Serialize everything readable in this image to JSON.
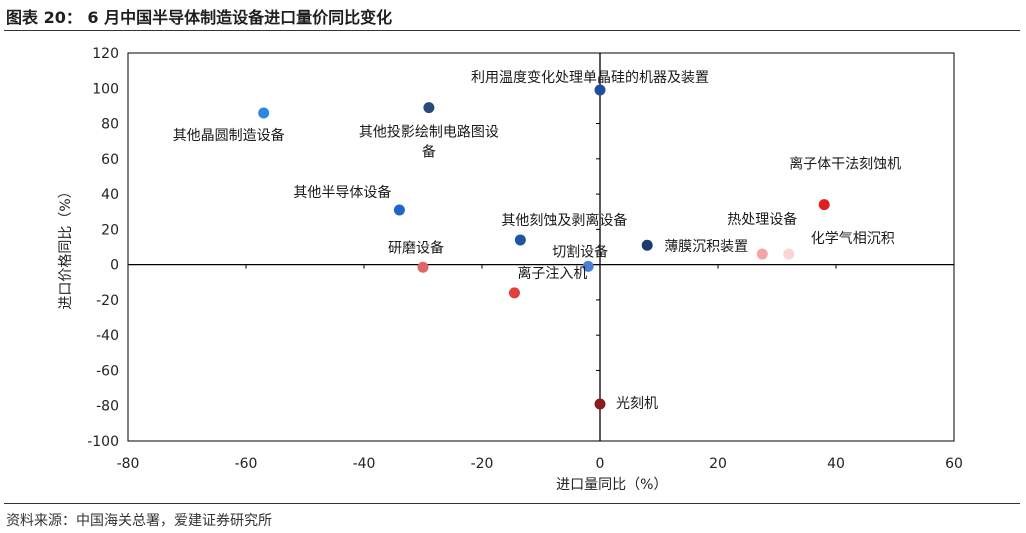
{
  "figure": {
    "title": "图表 20：  6 月中国半导体制造设备进口量价同比变化",
    "source": "资料来源：中国海关总署，爱建证券研究所"
  },
  "chart_data": {
    "type": "scatter",
    "xlabel": "进口量同比（%）",
    "ylabel": "进口价格同比（%）",
    "xlim": [
      -80,
      60
    ],
    "ylim": [
      -100,
      120
    ],
    "xticks": [
      -80,
      -60,
      -40,
      -20,
      0,
      20,
      40,
      60
    ],
    "yticks": [
      -100,
      -80,
      -60,
      -40,
      -20,
      0,
      20,
      40,
      60,
      80,
      100,
      120
    ],
    "grid": false,
    "points": [
      {
        "name": "利用温度变化处理单晶硅的机器及装置",
        "x": 0,
        "y": 99,
        "color": "#1f4e9c"
      },
      {
        "name": "其他晶圆制造设备",
        "x": -57,
        "y": 86,
        "color": "#2e86e0"
      },
      {
        "name": "其他投影绘制电路图设备",
        "x": -29,
        "y": 89,
        "color": "#274a7a"
      },
      {
        "name": "其他半导体设备",
        "x": -34,
        "y": 31,
        "color": "#1f66c9"
      },
      {
        "name": "其他刻蚀及剥离设备",
        "x": -13.5,
        "y": 14,
        "color": "#1f56a0"
      },
      {
        "name": "研磨设备",
        "x": -30,
        "y": -1.5,
        "color": "#e06666"
      },
      {
        "name": "切割设备",
        "x": -2,
        "y": -1,
        "color": "#4a7fd4"
      },
      {
        "name": "薄膜沉积装置",
        "x": 8,
        "y": 11,
        "color": "#1c3a6e"
      },
      {
        "name": "热处理设备",
        "x": 27.5,
        "y": 6,
        "color": "#f2a5a5"
      },
      {
        "name": "化学气相沉积",
        "x": 32,
        "y": 6,
        "color": "#f9d6d6"
      },
      {
        "name": "离子体干法刻蚀机",
        "x": 38,
        "y": 34,
        "color": "#e02020"
      },
      {
        "name": "离子注入机",
        "x": -14.5,
        "y": -16,
        "color": "#e0413b"
      },
      {
        "name": "光刻机",
        "x": 0,
        "y": -79,
        "color": "#8b1a1a"
      }
    ]
  }
}
